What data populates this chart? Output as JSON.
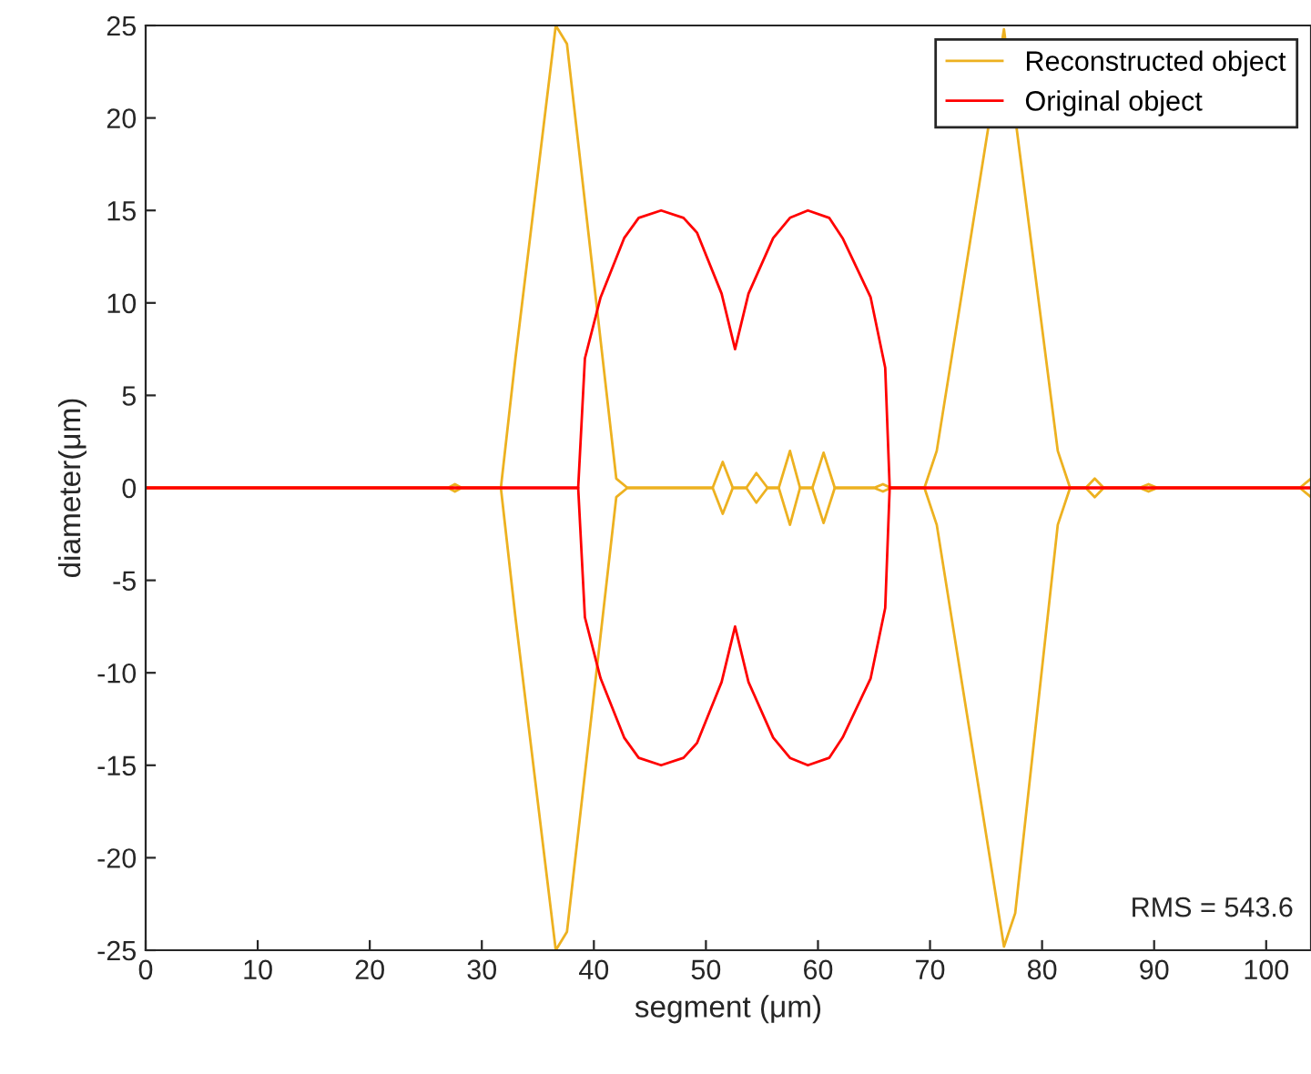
{
  "chart_data": {
    "type": "line",
    "xlabel": "segment (μm)",
    "ylabel": "diameter(μm)",
    "xlim": [
      0,
      104
    ],
    "ylim": [
      -25,
      25
    ],
    "xticks": [
      0,
      10,
      20,
      30,
      40,
      50,
      60,
      70,
      80,
      90,
      100
    ],
    "yticks": [
      -25,
      -20,
      -15,
      -10,
      -5,
      0,
      5,
      10,
      15,
      20,
      25
    ],
    "grid": false,
    "legend": "top right",
    "marker": "none",
    "line_style": "solid",
    "annotations": [
      "RMS = 543.6"
    ],
    "series": [
      {
        "name": "Reconstructed object",
        "color": "#edb120",
        "x": [
          0,
          27,
          27.6,
          28.2,
          31.7,
          33,
          36.6,
          37.6,
          42,
          43,
          50.6,
          51.5,
          52.4,
          53.6,
          54.5,
          55.5,
          56.5,
          57.5,
          58.4,
          59.5,
          60.5,
          61.5,
          65,
          65.8,
          66.5,
          69.5,
          70.6,
          76.6,
          81.4,
          82.5,
          83.9,
          84.7,
          85.5,
          88.7,
          89.5,
          90.3,
          103,
          104
        ],
        "values": [
          0,
          0,
          0.2,
          0,
          0,
          7,
          25,
          24,
          0.5,
          0,
          0,
          1.4,
          0,
          0,
          0.8,
          0,
          0,
          2,
          0,
          0,
          1.9,
          0,
          0,
          0.2,
          0,
          0,
          2,
          24.8,
          2,
          0,
          0,
          0.5,
          0,
          0,
          0.2,
          0,
          0,
          0.5
        ]
      },
      {
        "color": "#edb120",
        "x": [
          0,
          27,
          27.6,
          28.2,
          31.7,
          33,
          36.6,
          37.6,
          42,
          43,
          50.6,
          51.5,
          52.4,
          53.6,
          54.5,
          55.5,
          56.5,
          57.5,
          58.4,
          59.5,
          60.5,
          61.5,
          65,
          65.8,
          66.5,
          69.5,
          70.6,
          76.6,
          77.6,
          81.4,
          82.5,
          83.9,
          84.7,
          85.5,
          88.7,
          89.5,
          90.3,
          103,
          104
        ],
        "values": [
          0,
          0,
          -0.2,
          0,
          0,
          -7,
          -25,
          -24,
          -0.5,
          0,
          0,
          -1.4,
          0,
          0,
          -0.8,
          0,
          0,
          -2,
          0,
          0,
          -1.9,
          0,
          0,
          -0.2,
          0,
          0,
          -2,
          -24.8,
          -23,
          -2,
          0,
          0,
          -0.5,
          0,
          0,
          -0.2,
          0,
          0,
          -0.5
        ]
      },
      {
        "name": "Original object",
        "color": "#ff0000",
        "x": [
          0,
          38.6,
          39.2,
          40.6,
          42.7,
          44,
          46,
          48,
          49.2,
          51.4,
          52.6,
          53.8,
          56,
          57.5,
          59.1,
          61,
          62.2,
          64.7,
          66,
          66.4,
          104
        ],
        "values": [
          0,
          0,
          7,
          10.3,
          13.5,
          14.6,
          15,
          14.6,
          13.8,
          10.5,
          7.5,
          10.5,
          13.5,
          14.6,
          15,
          14.6,
          13.5,
          10.3,
          6.5,
          0,
          0
        ]
      },
      {
        "color": "#ff0000",
        "x": [
          0,
          38.6,
          39.2,
          40.6,
          42.7,
          44,
          46,
          48,
          49.2,
          51.4,
          52.6,
          53.8,
          56,
          57.5,
          59.1,
          61,
          62.2,
          64.7,
          66,
          66.4,
          104
        ],
        "values": [
          0,
          0,
          -7,
          -10.3,
          -13.5,
          -14.6,
          -15,
          -14.6,
          -13.8,
          -10.5,
          -7.5,
          -10.5,
          -13.5,
          -14.6,
          -15,
          -14.6,
          -13.5,
          -10.3,
          -6.5,
          0,
          0
        ]
      }
    ]
  }
}
